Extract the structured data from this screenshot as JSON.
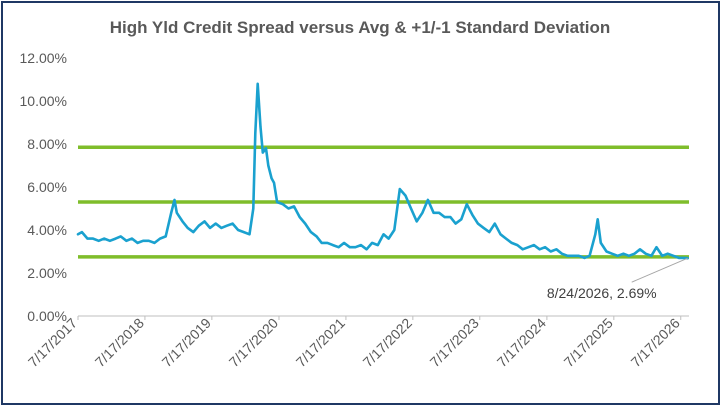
{
  "chart_data": {
    "type": "line",
    "title": "High Yld Credit Spread versus Avg & +1/-1 Standard Deviation",
    "xlabel": "",
    "ylabel": "",
    "ylim": [
      0,
      12
    ],
    "y_ticks": [
      "0.00%",
      "2.00%",
      "4.00%",
      "6.00%",
      "8.00%",
      "10.00%",
      "12.00%"
    ],
    "x_ticks": [
      "7/17/2017",
      "7/17/2018",
      "7/17/2019",
      "7/17/2020",
      "7/17/2021",
      "7/17/2022",
      "7/17/2023",
      "7/17/2024",
      "7/17/2025",
      "7/17/2026"
    ],
    "grid": false,
    "legend": "none",
    "series": [
      {
        "color": "#1aa1cf",
        "x": [
          "2017-07-17",
          "2017-08-07",
          "2017-09-07",
          "2017-10-07",
          "2017-11-07",
          "2017-12-07",
          "2018-01-07",
          "2018-02-07",
          "2018-03-07",
          "2018-04-07",
          "2018-05-07",
          "2018-06-07",
          "2018-07-07",
          "2018-08-07",
          "2018-09-07",
          "2018-10-07",
          "2018-11-07",
          "2018-12-07",
          "2018-12-25",
          "2019-01-07",
          "2019-02-07",
          "2019-03-07",
          "2019-04-07",
          "2019-05-07",
          "2019-06-07",
          "2019-07-07",
          "2019-08-07",
          "2019-09-07",
          "2019-10-07",
          "2019-11-07",
          "2019-12-07",
          "2020-01-07",
          "2020-02-07",
          "2020-02-28",
          "2020-03-10",
          "2020-03-23",
          "2020-04-07",
          "2020-04-20",
          "2020-05-07",
          "2020-05-20",
          "2020-06-07",
          "2020-06-20",
          "2020-07-07",
          "2020-08-07",
          "2020-09-07",
          "2020-10-07",
          "2020-11-07",
          "2020-12-07",
          "2021-01-07",
          "2021-02-07",
          "2021-03-07",
          "2021-04-07",
          "2021-05-07",
          "2021-06-07",
          "2021-07-07",
          "2021-08-07",
          "2021-09-07",
          "2021-10-07",
          "2021-11-07",
          "2021-12-07",
          "2022-01-07",
          "2022-02-07",
          "2022-03-07",
          "2022-04-07",
          "2022-05-07",
          "2022-06-07",
          "2022-07-07",
          "2022-08-07",
          "2022-09-07",
          "2022-10-07",
          "2022-11-07",
          "2022-12-07",
          "2023-01-07",
          "2023-02-07",
          "2023-03-07",
          "2023-04-07",
          "2023-05-07",
          "2023-06-07",
          "2023-07-07",
          "2023-08-07",
          "2023-09-07",
          "2023-10-07",
          "2023-11-07",
          "2023-12-07",
          "2024-01-07",
          "2024-02-07",
          "2024-03-07",
          "2024-04-07",
          "2024-05-07",
          "2024-06-07",
          "2024-07-07",
          "2024-08-07",
          "2024-09-07",
          "2024-10-07",
          "2024-11-07",
          "2024-12-07",
          "2025-01-07",
          "2025-02-07",
          "2025-03-07",
          "2025-04-07",
          "2025-04-20",
          "2025-05-07",
          "2025-06-07",
          "2025-07-07",
          "2025-08-07",
          "2025-09-07",
          "2025-10-07",
          "2025-11-07",
          "2025-12-07",
          "2026-01-07",
          "2026-02-07",
          "2026-03-07",
          "2026-04-07",
          "2026-05-07",
          "2026-06-07",
          "2026-07-07",
          "2026-08-07",
          "2026-08-24"
        ],
        "values": [
          3.8,
          3.9,
          3.6,
          3.6,
          3.5,
          3.6,
          3.5,
          3.6,
          3.7,
          3.5,
          3.6,
          3.4,
          3.5,
          3.5,
          3.4,
          3.6,
          3.7,
          4.8,
          5.4,
          4.8,
          4.4,
          4.1,
          3.9,
          4.2,
          4.4,
          4.1,
          4.3,
          4.1,
          4.2,
          4.3,
          4.0,
          3.9,
          3.8,
          5.0,
          8.5,
          10.8,
          8.8,
          7.6,
          7.8,
          7.0,
          6.4,
          6.2,
          5.3,
          5.2,
          5.0,
          5.1,
          4.6,
          4.3,
          3.9,
          3.7,
          3.4,
          3.4,
          3.3,
          3.2,
          3.4,
          3.2,
          3.2,
          3.3,
          3.1,
          3.4,
          3.3,
          3.8,
          3.6,
          4.0,
          5.9,
          5.6,
          5.0,
          4.4,
          4.8,
          5.4,
          4.8,
          4.8,
          4.6,
          4.6,
          4.3,
          4.5,
          5.2,
          4.7,
          4.3,
          4.1,
          3.9,
          4.3,
          3.8,
          3.6,
          3.4,
          3.3,
          3.1,
          3.2,
          3.3,
          3.1,
          3.2,
          3.0,
          3.1,
          2.9,
          2.8,
          2.8,
          2.8,
          2.7,
          2.8,
          3.8,
          4.5,
          3.4,
          3.0,
          2.9,
          2.8,
          2.9,
          2.8,
          2.9,
          3.1,
          2.9,
          2.8,
          3.2,
          2.8,
          2.9,
          2.8,
          2.7,
          2.7,
          2.69
        ]
      }
    ],
    "reference_lines": [
      {
        "name": "avg_plus_sd",
        "value": 7.85,
        "color": "#7fbd2b"
      },
      {
        "name": "avg",
        "value": 5.3,
        "color": "#7fbd2b"
      },
      {
        "name": "avg_minus_sd",
        "value": 2.75,
        "color": "#7fbd2b"
      }
    ],
    "annotations": [
      {
        "text": "8/24/2026, 2.69%",
        "date": "2026-08-24",
        "value": 2.69
      }
    ]
  }
}
